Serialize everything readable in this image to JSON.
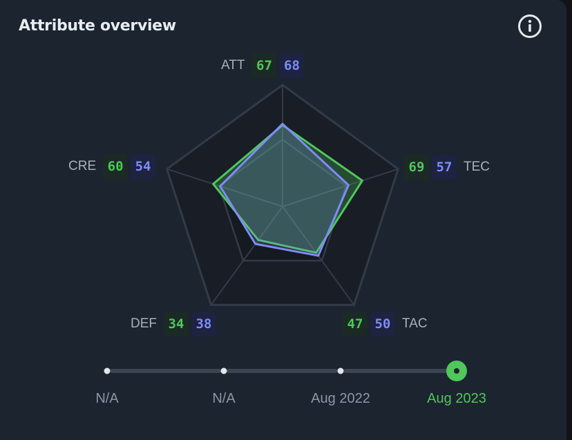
{
  "title": "Attribute overview",
  "info_icon": "info-icon",
  "colors": {
    "series_a": "#4fc75a",
    "series_b": "#7e8cf7"
  },
  "chart_data": {
    "type": "radar",
    "title": "Attribute overview",
    "range": [
      0,
      100
    ],
    "axes": [
      "ATT",
      "TEC",
      "TAC",
      "DEF",
      "CRE"
    ],
    "series": [
      {
        "values": [
          67,
          69,
          47,
          34,
          60
        ]
      },
      {
        "values": [
          68,
          57,
          50,
          38,
          54
        ]
      }
    ]
  },
  "timeline": {
    "points": [
      "N/A",
      "N/A",
      "Aug 2022",
      "Aug 2023"
    ],
    "selected": 3
  }
}
